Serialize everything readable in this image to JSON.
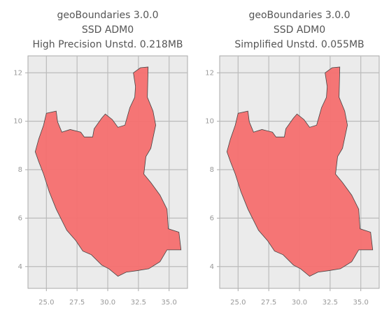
{
  "chart_data": [
    {
      "type": "map",
      "title": [
        "geoBoundaries 3.0.0",
        "SSD ADM0",
        "High Precision Unstd. 0.218MB"
      ],
      "xlim": [
        23.5,
        36.5
      ],
      "ylim": [
        3.1,
        12.7
      ],
      "xticks": [
        {
          "value": 25,
          "label": "25.0"
        },
        27.5,
        {
          "value": 30,
          "label": "30.0"
        },
        32.5,
        {
          "value": 35,
          "label": "35.0"
        }
      ],
      "yticks": [
        4,
        6,
        8,
        10,
        12
      ],
      "grid": true,
      "color": "#f56f6f",
      "x": [
        24.09,
        24.37,
        24.77,
        25.0,
        25.8,
        25.91,
        26.26,
        26.94,
        27.8,
        28.09,
        28.77,
        28.89,
        29.51,
        29.8,
        30.37,
        30.83,
        31.4,
        31.8,
        32.2,
        32.26,
        32.09,
        32.66,
        33.29,
        33.23,
        33.69,
        33.91,
        33.51,
        33.11,
        32.94,
        33.51,
        34.26,
        34.83,
        34.94,
        35.8,
        35.97,
        34.83,
        34.26,
        33.34,
        32.37,
        31.51,
        30.83,
        30.09,
        29.51,
        28.66,
        27.97,
        27.4,
        26.66,
        25.8,
        25.23,
        24.77,
        24.37
      ],
      "y": [
        8.74,
        9.26,
        9.84,
        10.33,
        10.42,
        9.98,
        9.55,
        9.66,
        9.55,
        9.35,
        9.35,
        9.69,
        10.13,
        10.3,
        10.07,
        9.75,
        9.84,
        10.56,
        10.99,
        11.43,
        12.0,
        12.21,
        12.24,
        10.99,
        10.42,
        9.84,
        8.88,
        8.54,
        7.82,
        7.47,
        6.95,
        6.37,
        5.56,
        5.42,
        4.69,
        4.69,
        4.2,
        3.91,
        3.83,
        3.77,
        3.6,
        3.91,
        4.06,
        4.49,
        4.64,
        5.07,
        5.5,
        6.37,
        7.09,
        7.82,
        8.34
      ]
    },
    {
      "type": "map",
      "title": [
        "geoBoundaries 3.0.0",
        "SSD ADM0",
        "Simplified Unstd. 0.055MB"
      ],
      "xlim": [
        23.5,
        36.5
      ],
      "ylim": [
        3.1,
        12.7
      ],
      "xticks": [
        {
          "value": 25,
          "label": "25.0"
        },
        27.5,
        {
          "value": 30,
          "label": "30.0"
        },
        32.5,
        {
          "value": 35,
          "label": "35.0"
        }
      ],
      "yticks": [
        4,
        6,
        8,
        10,
        12
      ],
      "grid": true,
      "color": "#f56f6f",
      "x": [
        24.09,
        24.37,
        24.77,
        25.0,
        25.8,
        25.91,
        26.26,
        26.94,
        27.8,
        28.09,
        28.77,
        28.89,
        29.51,
        29.8,
        30.37,
        30.83,
        31.4,
        31.8,
        32.2,
        32.26,
        32.09,
        32.66,
        33.29,
        33.23,
        33.69,
        33.91,
        33.51,
        33.11,
        32.94,
        33.51,
        34.26,
        34.83,
        34.94,
        35.8,
        35.97,
        34.83,
        34.26,
        33.34,
        32.37,
        31.51,
        30.83,
        30.09,
        29.51,
        28.66,
        27.97,
        27.4,
        26.66,
        25.8,
        25.23,
        24.77,
        24.37
      ],
      "y": [
        8.74,
        9.26,
        9.84,
        10.33,
        10.42,
        9.98,
        9.55,
        9.66,
        9.55,
        9.35,
        9.35,
        9.69,
        10.13,
        10.3,
        10.07,
        9.75,
        9.84,
        10.56,
        10.99,
        11.43,
        12.0,
        12.21,
        12.24,
        10.99,
        10.42,
        9.84,
        8.88,
        8.54,
        7.82,
        7.47,
        6.95,
        6.37,
        5.56,
        5.42,
        4.69,
        4.69,
        4.2,
        3.91,
        3.83,
        3.77,
        3.6,
        3.91,
        4.06,
        4.49,
        4.64,
        5.07,
        5.5,
        6.37,
        7.09,
        7.82,
        8.34
      ]
    }
  ]
}
